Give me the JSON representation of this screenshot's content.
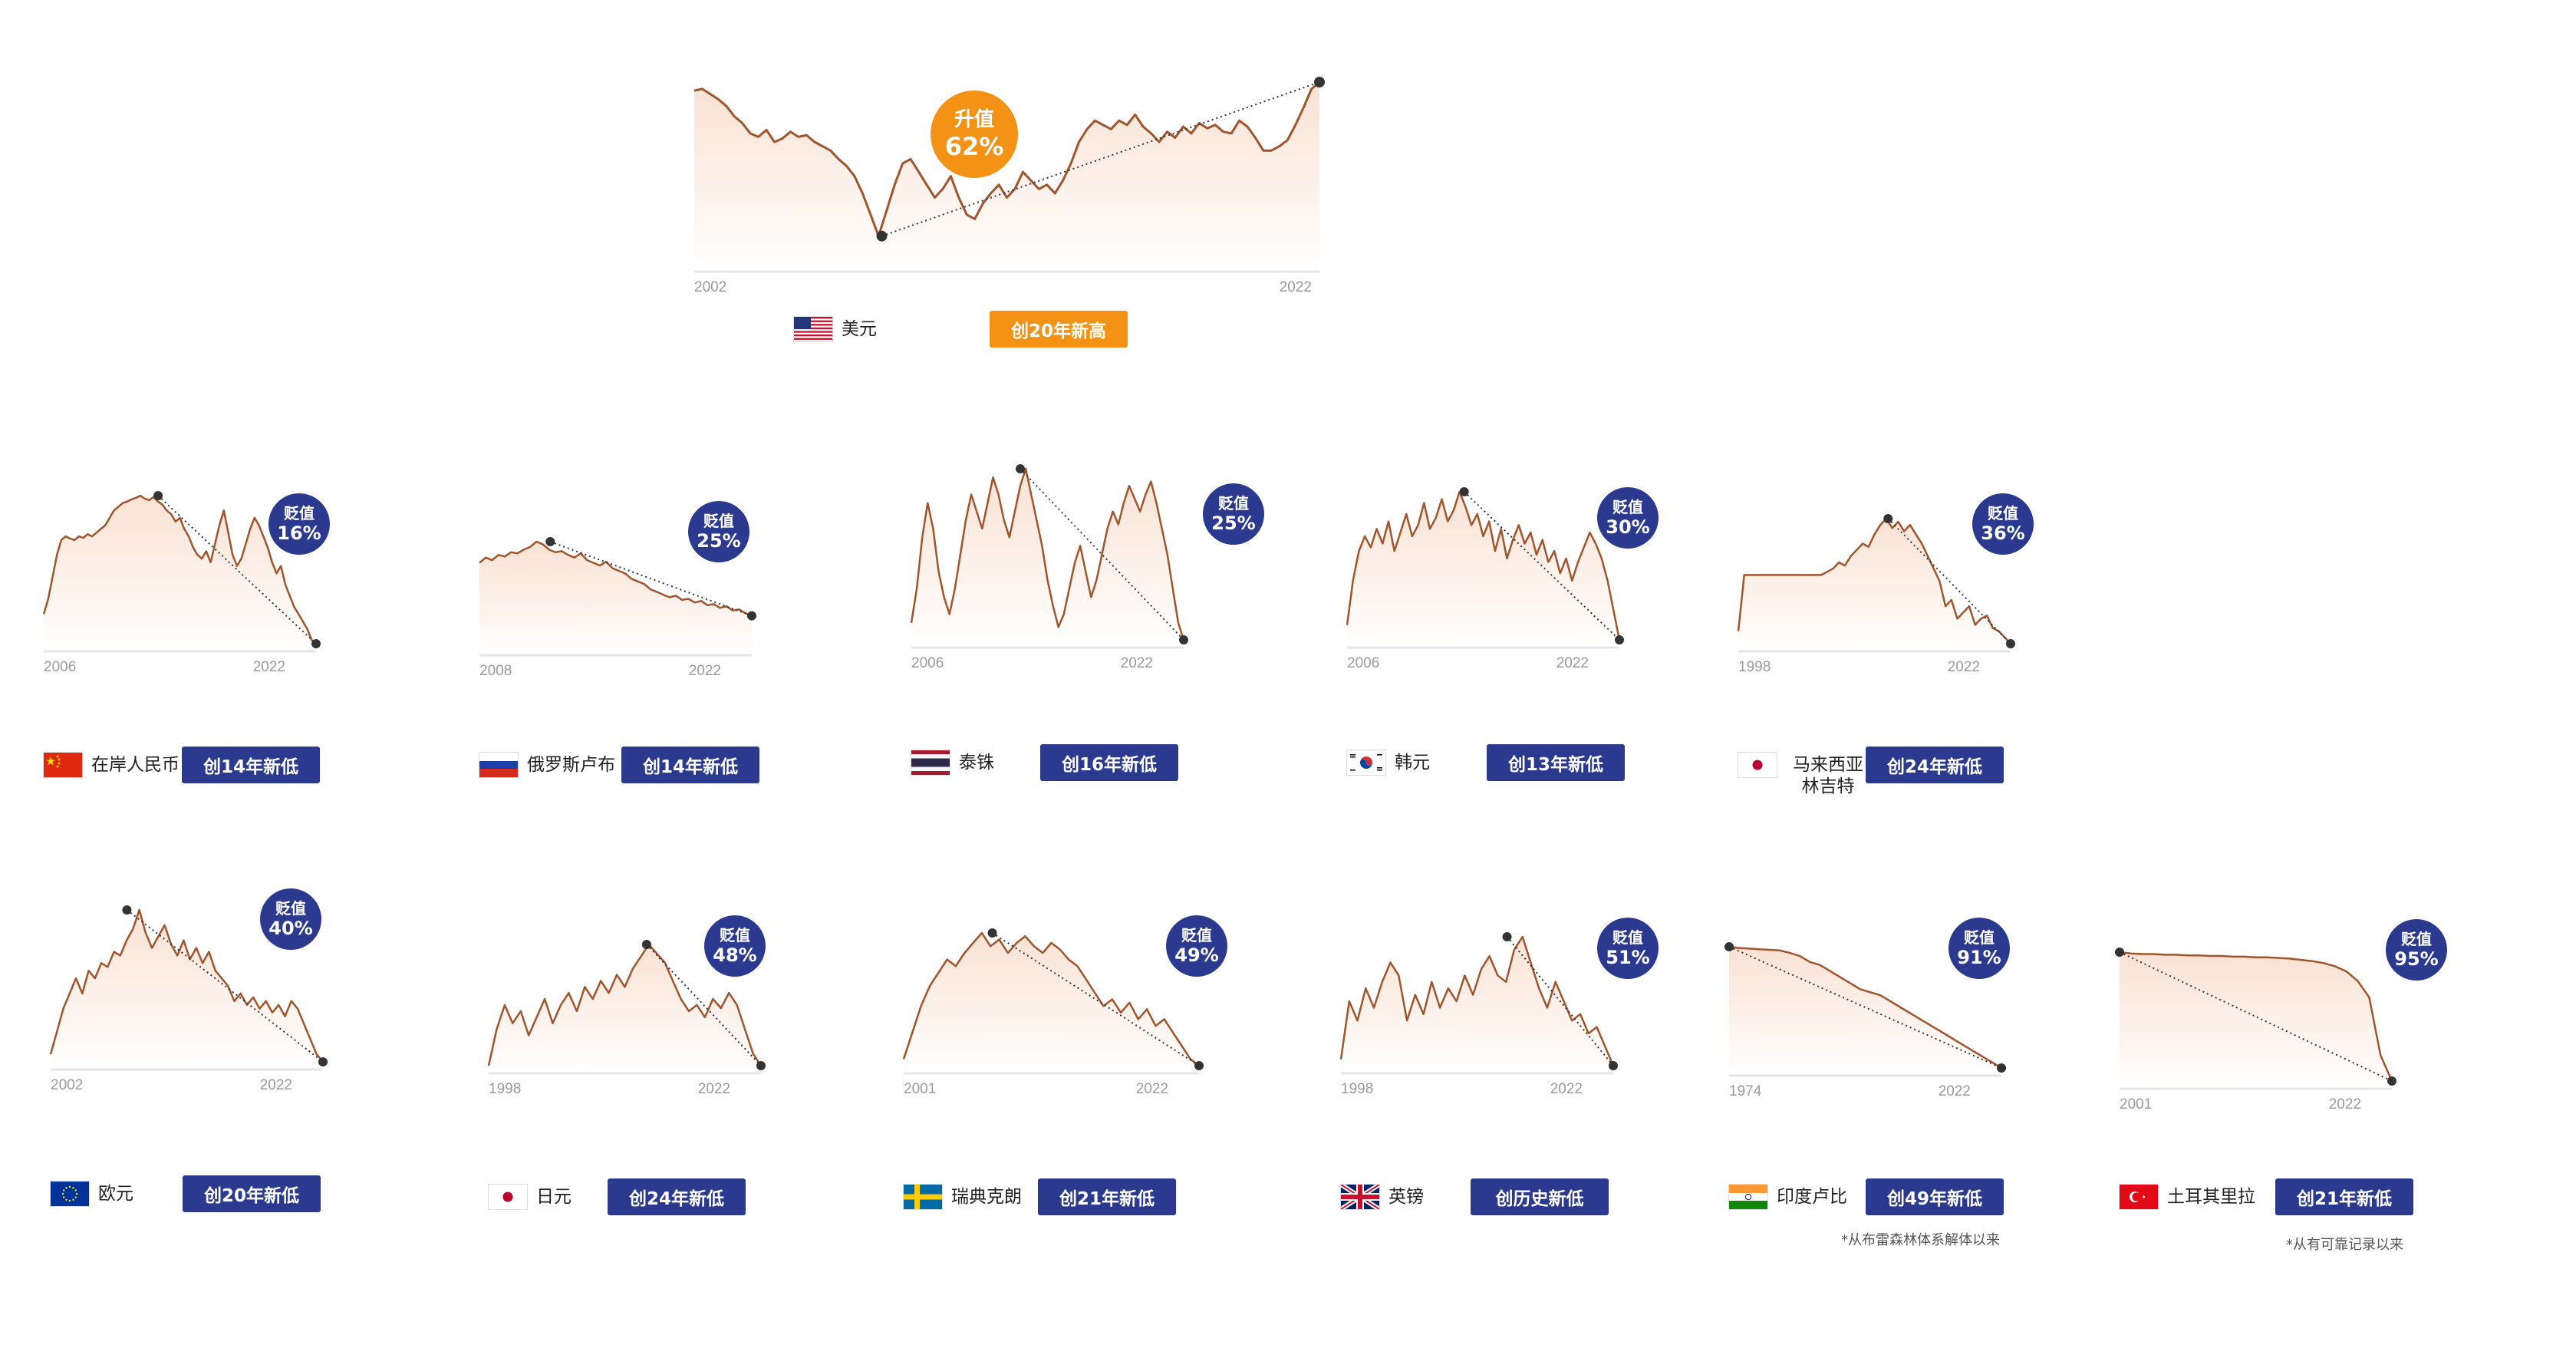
{
  "colors": {
    "navy": "#2b3a8e",
    "orange": "#f39214",
    "line": "#a0552d",
    "fill_top": "#f6d2bc"
  },
  "chart_data": [
    {
      "key": "usd",
      "type": "line",
      "currency": "美元",
      "badge_label": "升值",
      "badge_pct": "62%",
      "x_start": "2002",
      "x_end": "2022",
      "tag": "创20年新高",
      "flag": "us-flag",
      "theme": "orange",
      "trend": [
        {
          "x": 0.3,
          "y": -0.8
        },
        {
          "x": 1.0,
          "y": 1.0
        }
      ],
      "values": [
        0.9,
        0.92,
        0.86,
        0.8,
        0.72,
        0.6,
        0.52,
        0.4,
        0.36,
        0.44,
        0.3,
        0.34,
        0.42,
        0.36,
        0.38,
        0.3,
        0.25,
        0.2,
        0.1,
        0.02,
        -0.1,
        -0.3,
        -0.55,
        -0.8,
        -0.5,
        -0.2,
        0.05,
        0.1,
        -0.05,
        -0.2,
        -0.35,
        -0.25,
        -0.1,
        -0.35,
        -0.55,
        -0.6,
        -0.42,
        -0.3,
        -0.2,
        -0.35,
        -0.25,
        -0.05,
        -0.15,
        -0.25,
        -0.2,
        -0.3,
        -0.15,
        0.05,
        0.3,
        0.45,
        0.55,
        0.5,
        0.45,
        0.55,
        0.5,
        0.62,
        0.48,
        0.4,
        0.3,
        0.42,
        0.35,
        0.48,
        0.4,
        0.52,
        0.46,
        0.5,
        0.42,
        0.4,
        0.55,
        0.48,
        0.35,
        0.2,
        0.2,
        0.25,
        0.32,
        0.5,
        0.7,
        0.92,
        1.0
      ]
    },
    {
      "key": "cnh",
      "type": "line",
      "currency": "在岸人民币",
      "badge_label": "贬值",
      "badge_pct": "16%",
      "x_start": "2006",
      "x_end": "2022",
      "tag": "创14年新低",
      "flag": "cn-flag",
      "theme": "navy",
      "trend": [
        {
          "x": 0.42,
          "y": 1.0
        },
        {
          "x": 1.0,
          "y": -1.0
        }
      ],
      "values": [
        -0.6,
        -0.4,
        -0.1,
        0.2,
        0.4,
        0.45,
        0.42,
        0.4,
        0.45,
        0.43,
        0.48,
        0.45,
        0.5,
        0.55,
        0.6,
        0.7,
        0.8,
        0.85,
        0.9,
        0.92,
        0.95,
        0.97,
        1.0,
        0.96,
        0.94,
        0.98,
        0.92,
        0.88,
        0.8,
        0.75,
        0.65,
        0.7,
        0.55,
        0.45,
        0.3,
        0.2,
        0.15,
        0.25,
        0.1,
        0.35,
        0.6,
        0.8,
        0.5,
        0.2,
        0.05,
        0.15,
        0.35,
        0.55,
        0.7,
        0.6,
        0.45,
        0.3,
        0.1,
        -0.05,
        0.05,
        -0.2,
        -0.35,
        -0.5,
        -0.6,
        -0.7,
        -0.8,
        -0.95,
        -1.0
      ]
    },
    {
      "key": "rub",
      "type": "line",
      "currency": "俄罗斯卢布",
      "badge_label": "贬值",
      "badge_pct": "25%",
      "x_start": "2008",
      "x_end": "2022",
      "tag": "创14年新低",
      "flag": "ru-flag",
      "theme": "navy",
      "trend": [
        {
          "x": 0.26,
          "y": 1.0
        },
        {
          "x": 1.0,
          "y": -0.4
        }
      ],
      "values": [
        0.6,
        0.7,
        0.65,
        0.75,
        0.72,
        0.8,
        0.78,
        0.85,
        0.9,
        1.0,
        0.95,
        0.85,
        0.8,
        0.82,
        0.75,
        0.7,
        0.78,
        0.65,
        0.6,
        0.55,
        0.62,
        0.5,
        0.45,
        0.4,
        0.3,
        0.25,
        0.2,
        0.1,
        0.05,
        0.0,
        -0.05,
        -0.02,
        -0.1,
        -0.08,
        -0.15,
        -0.12,
        -0.2,
        -0.18,
        -0.25,
        -0.22,
        -0.3,
        -0.28,
        -0.35,
        -0.4
      ]
    },
    {
      "key": "thb",
      "type": "line",
      "currency": "泰铢",
      "badge_label": "贬值",
      "badge_pct": "25%",
      "x_start": "2006",
      "x_end": "2022",
      "tag": "创16年新低",
      "flag": "th-flag",
      "theme": "navy",
      "trend": [
        {
          "x": 0.4,
          "y": 1.0
        },
        {
          "x": 1.0,
          "y": -1.0
        }
      ],
      "values": [
        -0.8,
        -0.4,
        0.2,
        0.6,
        0.3,
        -0.2,
        -0.5,
        -0.7,
        -0.4,
        0.0,
        0.4,
        0.7,
        0.5,
        0.3,
        0.6,
        0.9,
        0.7,
        0.4,
        0.2,
        0.5,
        0.8,
        1.0,
        0.7,
        0.4,
        0.1,
        -0.3,
        -0.6,
        -0.85,
        -0.7,
        -0.4,
        -0.1,
        0.1,
        -0.2,
        -0.5,
        -0.3,
        0.0,
        0.3,
        0.5,
        0.35,
        0.6,
        0.8,
        0.65,
        0.5,
        0.7,
        0.85,
        0.6,
        0.3,
        0.0,
        -0.4,
        -0.8,
        -1.0
      ]
    },
    {
      "key": "krw",
      "type": "line",
      "currency": "韩元",
      "badge_label": "贬值",
      "badge_pct": "30%",
      "x_start": "2006",
      "x_end": "2022",
      "tag": "创13年新低",
      "flag": "kr-flag",
      "theme": "navy",
      "trend": [
        {
          "x": 0.43,
          "y": 1.0
        },
        {
          "x": 1.0,
          "y": -1.0
        }
      ],
      "values": [
        -0.8,
        -0.2,
        0.2,
        0.4,
        0.25,
        0.5,
        0.3,
        0.6,
        0.2,
        0.45,
        0.7,
        0.4,
        0.55,
        0.85,
        0.5,
        0.65,
        0.9,
        0.6,
        0.75,
        1.0,
        0.8,
        0.55,
        0.7,
        0.4,
        0.6,
        0.2,
        0.5,
        0.1,
        0.35,
        0.55,
        0.3,
        0.45,
        0.15,
        0.35,
        0.05,
        0.2,
        -0.1,
        0.1,
        -0.2,
        0.05,
        0.25,
        0.45,
        0.3,
        0.1,
        -0.2,
        -0.6,
        -1.0
      ]
    },
    {
      "key": "myr",
      "type": "line",
      "currency": "马来西亚林吉特",
      "badge_label": "贬值",
      "badge_pct": "36%",
      "x_start": "1998",
      "x_end": "2022",
      "tag": "创24年新低",
      "flag": "jp-flag",
      "theme": "navy",
      "trend": [
        {
          "x": 0.55,
          "y": 1.0
        },
        {
          "x": 1.0,
          "y": -1.0
        }
      ],
      "values": [
        -0.8,
        0.1,
        0.1,
        0.1,
        0.1,
        0.1,
        0.1,
        0.1,
        0.1,
        0.1,
        0.1,
        0.1,
        0.1,
        0.1,
        0.1,
        0.15,
        0.2,
        0.3,
        0.25,
        0.4,
        0.5,
        0.6,
        0.55,
        0.75,
        0.9,
        1.0,
        0.85,
        0.95,
        0.8,
        0.9,
        0.75,
        0.6,
        0.4,
        0.2,
        0.0,
        -0.4,
        -0.3,
        -0.6,
        -0.5,
        -0.4,
        -0.7,
        -0.6,
        -0.55,
        -0.75,
        -0.8,
        -0.9,
        -1.0
      ]
    },
    {
      "key": "eur",
      "type": "line",
      "currency": "欧元",
      "badge_label": "贬值",
      "badge_pct": "40%",
      "x_start": "2002",
      "x_end": "2022",
      "tag": "创20年新低",
      "flag": "eu-flag",
      "theme": "navy",
      "trend": [
        {
          "x": 0.28,
          "y": 1.0
        },
        {
          "x": 1.0,
          "y": -1.0
        }
      ],
      "values": [
        -0.9,
        -0.6,
        -0.3,
        -0.1,
        0.1,
        -0.1,
        0.2,
        0.1,
        0.3,
        0.25,
        0.45,
        0.4,
        0.6,
        0.75,
        1.0,
        0.7,
        0.5,
        0.65,
        0.8,
        0.55,
        0.4,
        0.6,
        0.35,
        0.5,
        0.3,
        0.45,
        0.2,
        0.1,
        0.0,
        -0.2,
        -0.1,
        -0.25,
        -0.15,
        -0.3,
        -0.2,
        -0.35,
        -0.25,
        -0.4,
        -0.2,
        -0.3,
        -0.5,
        -0.7,
        -0.9,
        -1.0
      ]
    },
    {
      "key": "jpy",
      "type": "line",
      "currency": "日元",
      "badge_label": "贬值",
      "badge_pct": "48%",
      "x_start": "1998",
      "x_end": "2022",
      "tag": "创24年新低",
      "flag": "jp-flag",
      "theme": "navy",
      "trend": [
        {
          "x": 0.58,
          "y": 1.0
        },
        {
          "x": 1.0,
          "y": -1.0
        }
      ],
      "values": [
        -1.0,
        -0.4,
        0.0,
        -0.3,
        -0.1,
        -0.5,
        -0.2,
        0.1,
        -0.3,
        0.0,
        0.2,
        -0.1,
        0.3,
        0.1,
        0.4,
        0.2,
        0.5,
        0.3,
        0.6,
        0.8,
        1.0,
        0.85,
        0.7,
        0.4,
        0.1,
        -0.1,
        0.0,
        -0.2,
        0.1,
        -0.05,
        0.2,
        0.0,
        -0.4,
        -0.8,
        -1.0
      ]
    },
    {
      "key": "sek",
      "type": "line",
      "currency": "瑞典克朗",
      "badge_label": "贬值",
      "badge_pct": "49%",
      "x_start": "2001",
      "x_end": "2022",
      "tag": "创21年新低",
      "flag": "se-flag",
      "theme": "navy",
      "trend": [
        {
          "x": 0.3,
          "y": 1.0
        },
        {
          "x": 1.0,
          "y": -1.0
        }
      ],
      "values": [
        -0.9,
        -0.5,
        -0.1,
        0.2,
        0.4,
        0.6,
        0.5,
        0.7,
        0.85,
        1.0,
        0.8,
        0.9,
        0.7,
        0.85,
        0.95,
        0.8,
        0.7,
        0.85,
        0.75,
        0.6,
        0.5,
        0.3,
        0.1,
        -0.1,
        0.0,
        -0.2,
        -0.05,
        -0.3,
        -0.15,
        -0.4,
        -0.3,
        -0.5,
        -0.7,
        -0.9,
        -1.0
      ]
    },
    {
      "key": "gbp",
      "type": "line",
      "currency": "英镑",
      "badge_label": "贬值",
      "badge_pct": "51%",
      "x_start": "1998",
      "x_end": "2022",
      "tag": "创历史新低",
      "flag": "gb-flag",
      "theme": "navy",
      "trend": [
        {
          "x": 0.61,
          "y": 1.0
        },
        {
          "x": 1.0,
          "y": -1.0
        }
      ],
      "values": [
        -0.9,
        0.0,
        -0.3,
        0.2,
        -0.1,
        0.3,
        0.6,
        0.4,
        -0.3,
        0.1,
        -0.2,
        0.3,
        -0.1,
        0.2,
        0.0,
        0.4,
        0.1,
        0.5,
        0.7,
        0.4,
        0.3,
        0.8,
        1.0,
        0.6,
        0.2,
        -0.1,
        0.3,
        0.0,
        -0.3,
        -0.2,
        -0.5,
        -0.4,
        -0.7,
        -1.0
      ]
    },
    {
      "key": "inr",
      "type": "line",
      "currency": "印度卢比",
      "badge_label": "贬值",
      "badge_pct": "91%",
      "x_start": "1974",
      "x_end": "2022",
      "tag": "创49年新低",
      "flag": "in-flag",
      "theme": "navy",
      "note": "*从布雷森林体系解体以来",
      "trend": [
        {
          "x": 0.0,
          "y": 1.0
        },
        {
          "x": 1.0,
          "y": -1.0
        }
      ],
      "values": [
        1.0,
        0.98,
        0.97,
        0.96,
        0.95,
        0.94,
        0.9,
        0.85,
        0.75,
        0.7,
        0.6,
        0.5,
        0.4,
        0.3,
        0.25,
        0.2,
        0.1,
        0.0,
        -0.1,
        -0.2,
        -0.3,
        -0.4,
        -0.5,
        -0.6,
        -0.7,
        -0.8,
        -0.9,
        -1.0
      ]
    },
    {
      "key": "try",
      "type": "line",
      "currency": "土耳其里拉",
      "badge_label": "贬值",
      "badge_pct": "95%",
      "x_start": "2001",
      "x_end": "2022",
      "tag": "创21年新低",
      "flag": "tr-flag",
      "theme": "navy",
      "note": "*从有可靠记录以来",
      "trend": [
        {
          "x": 0.0,
          "y": 1.0
        },
        {
          "x": 1.0,
          "y": -1.0
        }
      ],
      "values": [
        1.0,
        0.98,
        0.97,
        0.97,
        0.96,
        0.96,
        0.95,
        0.95,
        0.94,
        0.94,
        0.93,
        0.93,
        0.92,
        0.92,
        0.91,
        0.9,
        0.88,
        0.86,
        0.83,
        0.78,
        0.7,
        0.55,
        0.3,
        -0.6,
        -1.0
      ]
    }
  ]
}
